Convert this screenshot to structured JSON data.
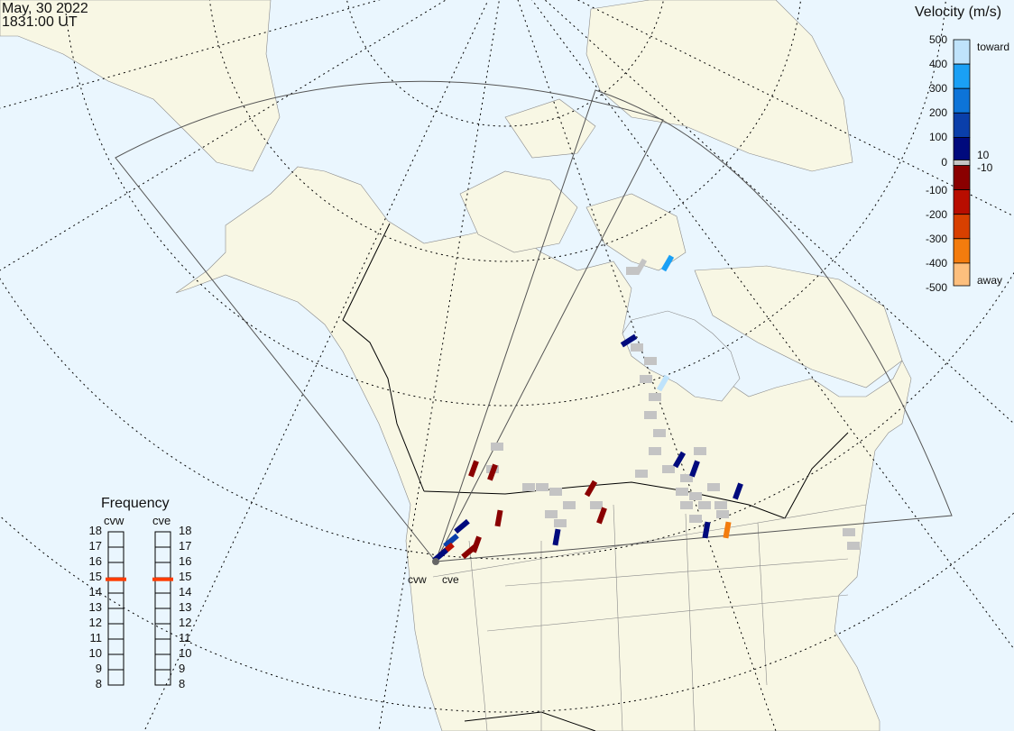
{
  "header": {
    "date": "May, 30 2022",
    "time": "1831:00 UT"
  },
  "colorbar": {
    "title": "Velocity (m/s)",
    "ticks": [
      "500",
      "400",
      "300",
      "200",
      "100",
      "0",
      "-100",
      "-200",
      "-300",
      "-400",
      "-500"
    ],
    "toward_label": "toward",
    "away_label": "away",
    "gs_upper": "10",
    "gs_lower": "-10",
    "colors": [
      "#bfe3fb",
      "#1aa0f5",
      "#0d74d8",
      "#0a3faa",
      "#000a7d",
      "#8a0000",
      "#b80d00",
      "#d84000",
      "#f37c0e",
      "#fdbf7d"
    ],
    "ground_scatter_color": "#c4c4c4"
  },
  "frequency": {
    "title": "Frequency",
    "ticks": [
      "18",
      "17",
      "16",
      "15",
      "14",
      "13",
      "12",
      "11",
      "10",
      "9",
      "8"
    ],
    "radars": [
      {
        "name": "cvw",
        "freq_mhz": 14.9
      },
      {
        "name": "cve",
        "freq_mhz": 14.9
      }
    ],
    "marker_color": "#ff3c00"
  },
  "map": {
    "radar_labels": [
      "cvw",
      "cve"
    ],
    "land_color": "#f8f7e4",
    "ocean_color": "#eaf6fe"
  }
}
